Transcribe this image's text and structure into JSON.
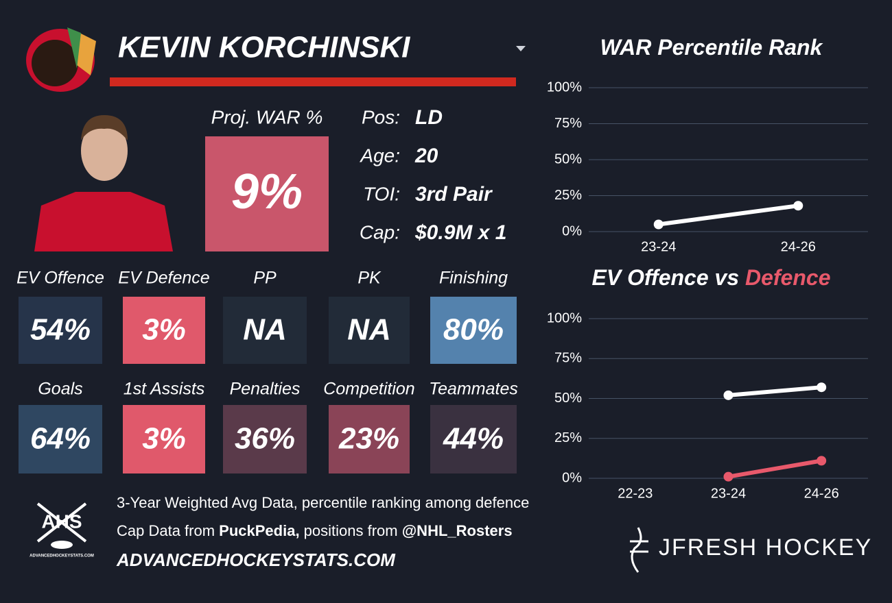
{
  "header": {
    "name": "KEVIN KORCHINSKI"
  },
  "summary": {
    "proj_war_label": "Proj. WAR %",
    "proj_war_value": "9%",
    "proj_war_color": "#c9566b",
    "info": [
      {
        "label": "Pos:",
        "value": "LD"
      },
      {
        "label": "Age:",
        "value": "20"
      },
      {
        "label": "TOI:",
        "value": "3rd Pair"
      },
      {
        "label": "Cap:",
        "value": "$0.9M x 1"
      }
    ]
  },
  "tiles": [
    {
      "label": "EV Offence",
      "value": "54%",
      "color": "#26344a"
    },
    {
      "label": "EV Defence",
      "value": "3%",
      "color": "#e0596b"
    },
    {
      "label": "PP",
      "value": "NA",
      "color": "#222b38"
    },
    {
      "label": "PK",
      "value": "NA",
      "color": "#222b38"
    },
    {
      "label": "Finishing",
      "value": "80%",
      "color": "#5482ad"
    },
    {
      "label": "Goals",
      "value": "64%",
      "color": "#2f4761"
    },
    {
      "label": "1st Assists",
      "value": "3%",
      "color": "#e0596b"
    },
    {
      "label": "Penalties",
      "value": "36%",
      "color": "#5a3a4a"
    },
    {
      "label": "Competition",
      "value": "23%",
      "color": "#8a4457"
    },
    {
      "label": "Teammates",
      "value": "44%",
      "color": "#3a3140"
    }
  ],
  "footer": {
    "line1": "3-Year Weighted Avg Data, percentile ranking among defence",
    "line2": [
      "Cap Data from ",
      "PuckPedia,",
      " positions from ",
      "@NHL_Rosters"
    ],
    "site": "ADVANCEDHOCKEYSTATS.COM",
    "ahs": "AHS",
    "ahs_sub": "ADVANCEDHOCKEYSTATS.COM",
    "brand": "JFRESH HOCKEY"
  },
  "chart_data": [
    {
      "type": "line",
      "title_parts": [
        {
          "text": "WAR Percentile Rank",
          "color": "#ffffff"
        }
      ],
      "categories": [
        "23-24",
        "24-26"
      ],
      "series": [
        {
          "color": "#ffffff",
          "values": [
            5,
            18
          ]
        }
      ],
      "ylim": [
        0,
        100
      ],
      "yticks": [
        {
          "value": 0,
          "label": "0%"
        },
        {
          "value": 25,
          "label": "25%"
        },
        {
          "value": 50,
          "label": "50%"
        },
        {
          "value": 75,
          "label": "75%"
        },
        {
          "value": 100,
          "label": "100%"
        }
      ],
      "grid": true
    },
    {
      "type": "line",
      "title_parts": [
        {
          "text": "EV Offence vs ",
          "color": "#ffffff"
        },
        {
          "text": "Defence",
          "color": "#e8596b"
        }
      ],
      "categories": [
        "22-23",
        "23-24",
        "24-26"
      ],
      "series": [
        {
          "color": "#ffffff",
          "values": [
            null,
            52,
            57
          ]
        },
        {
          "color": "#e8596b",
          "values": [
            null,
            1,
            11
          ]
        }
      ],
      "ylim": [
        0,
        100
      ],
      "yticks": [
        {
          "value": 0,
          "label": "0%"
        },
        {
          "value": 25,
          "label": "25%"
        },
        {
          "value": 50,
          "label": "50%"
        },
        {
          "value": 75,
          "label": "75%"
        },
        {
          "value": 100,
          "label": "100%"
        }
      ],
      "grid": true
    }
  ]
}
